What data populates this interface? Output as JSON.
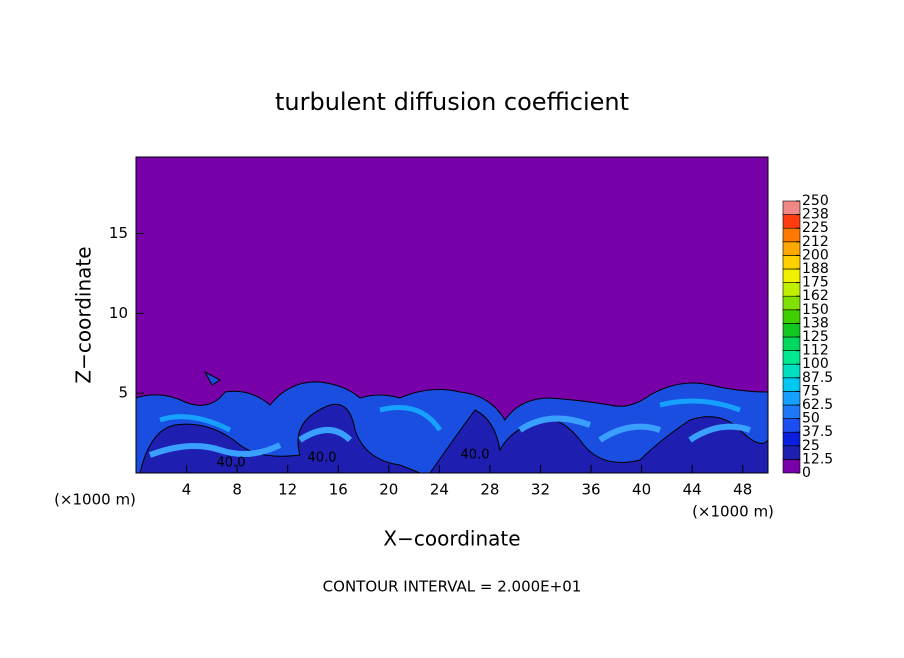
{
  "chart_data": {
    "type": "contour",
    "title": "turbulent diffusion coefficient",
    "x_label": "X−coordinate",
    "y_label": "Z−coordinate",
    "x_unit_labels": [
      "(×1000 m)",
      "(×1000 m)"
    ],
    "footer": "CONTOUR INTERVAL = 2.000E+01",
    "contour_labels": [
      "40.0",
      "40.0",
      "40.0"
    ],
    "xlim": [
      0,
      50
    ],
    "xticks": [
      4,
      8,
      12,
      16,
      20,
      24,
      28,
      32,
      36,
      40,
      44,
      48
    ],
    "ylim": [
      0,
      19.8
    ],
    "yticks": [
      5,
      10,
      15
    ],
    "levels": [
      0,
      12.5,
      25,
      37.5,
      50,
      62.5,
      75,
      87.5,
      100,
      {
        "value": 112.5,
        "label": "112"
      },
      125,
      {
        "value": 137.5,
        "label": "138"
      },
      150,
      {
        "value": 162.5,
        "label": "162"
      },
      175,
      {
        "value": 187.5,
        "label": "188"
      },
      200,
      {
        "value": 212.5,
        "label": "212"
      },
      225,
      {
        "value": 237.5,
        "label": "238"
      },
      250
    ],
    "colors": [
      "#7800a8",
      "#1e1eb0",
      "#0a1ee0",
      "#1a4ef0",
      "#1e78f8",
      "#16a0ff",
      "#00c8f0",
      "#00e0c0",
      "#00e890",
      "#00d860",
      "#10c820",
      "#40d000",
      "#80e000",
      "#c0f000",
      "#f0f000",
      "#ffd000",
      "#ffa800",
      "#ff7800",
      "#ff3c10",
      "#f08888"
    ]
  }
}
